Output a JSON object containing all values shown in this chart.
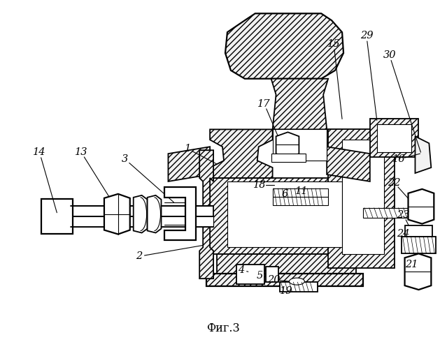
{
  "caption": "Фиг.3",
  "bg_color": "#ffffff",
  "figsize": [
    6.39,
    5.0
  ],
  "dpi": 100
}
